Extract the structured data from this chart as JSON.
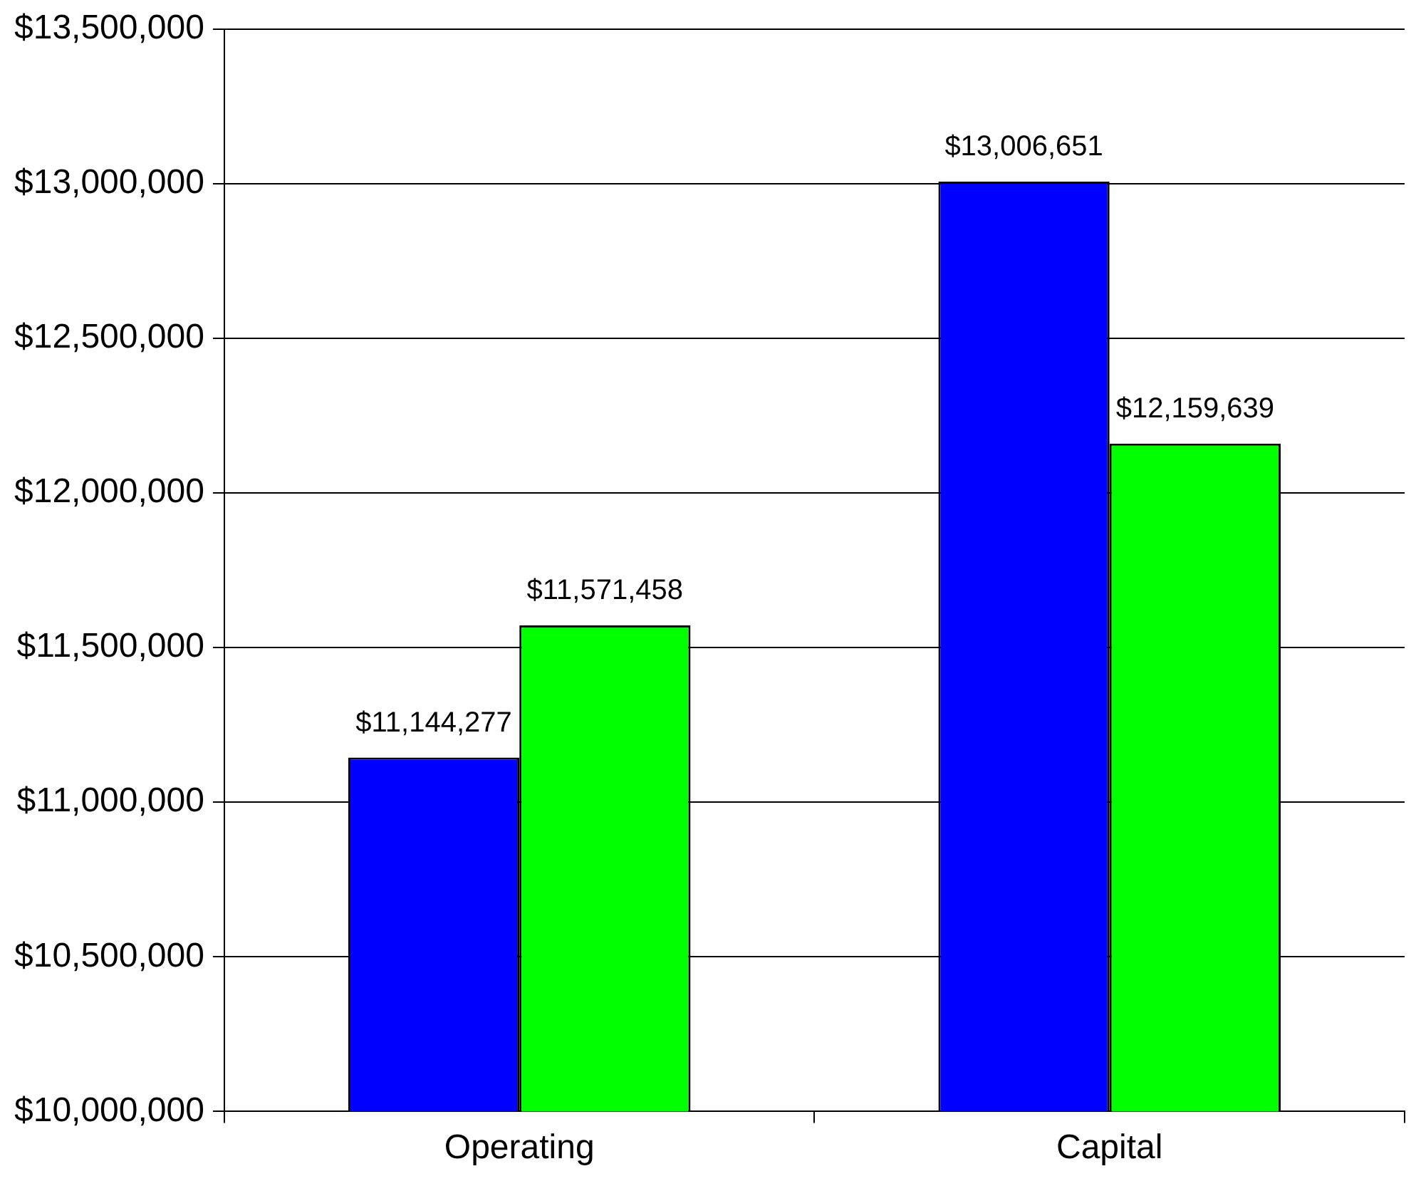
{
  "chart_data": {
    "type": "bar",
    "categories": [
      "Operating",
      "Capital"
    ],
    "series": [
      {
        "color": "#0000ff",
        "values": [
          11144277,
          13006651
        ],
        "value_labels": [
          "$11,144,277",
          "$13,006,651"
        ]
      },
      {
        "color": "#00ff00",
        "values": [
          11571458,
          12159639
        ],
        "value_labels": [
          "$11,571,458",
          "$12,159,639"
        ]
      }
    ],
    "ylim": [
      10000000,
      13500000
    ],
    "yticks": [
      {
        "value": 10000000,
        "label": "$10,000,000"
      },
      {
        "value": 10500000,
        "label": "$10,500,000"
      },
      {
        "value": 11000000,
        "label": "$11,000,000"
      },
      {
        "value": 11500000,
        "label": "$11,500,000"
      },
      {
        "value": 12000000,
        "label": "$12,000,000"
      },
      {
        "value": 12500000,
        "label": "$12,500,000"
      },
      {
        "value": 13000000,
        "label": "$13,000,000"
      },
      {
        "value": 13500000,
        "label": "$13,500,000"
      }
    ],
    "grid": "y",
    "legend": false
  }
}
